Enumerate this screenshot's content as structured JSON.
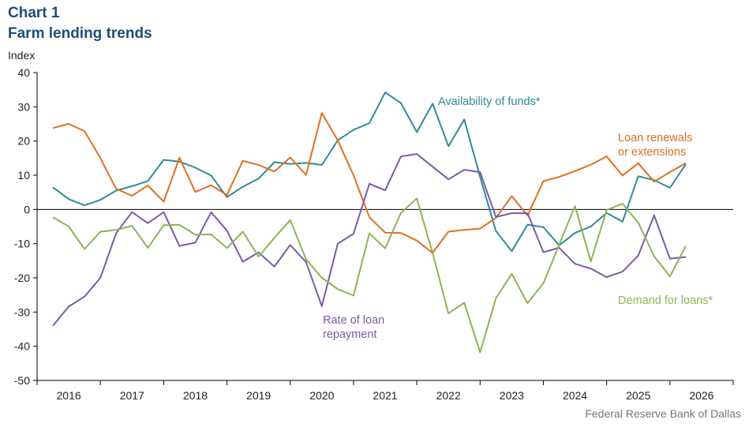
{
  "header": {
    "chart_label": "Chart 1",
    "title": "Farm lending trends"
  },
  "footer": {
    "source": "Federal Reserve Bank of Dallas"
  },
  "chart_data": {
    "type": "line",
    "ylabel": "Index",
    "ylim": [
      -50,
      40
    ],
    "yticks": [
      40,
      30,
      20,
      10,
      0,
      -10,
      -20,
      -30,
      -40,
      -50
    ],
    "xlim": [
      2015.5,
      2026.5
    ],
    "xtick_labels": [
      "2016",
      "2017",
      "2018",
      "2019",
      "2020",
      "2021",
      "2022",
      "2023",
      "2024",
      "2025",
      "2026"
    ],
    "grid": false,
    "x": [
      2015.75,
      2016.0,
      2016.25,
      2016.5,
      2016.75,
      2017.0,
      2017.25,
      2017.5,
      2017.75,
      2018.0,
      2018.25,
      2018.5,
      2018.75,
      2019.0,
      2019.25,
      2019.5,
      2019.75,
      2020.0,
      2020.25,
      2020.5,
      2020.75,
      2021.0,
      2021.25,
      2021.5,
      2021.75,
      2022.0,
      2022.25,
      2022.5,
      2022.75,
      2023.0,
      2023.25,
      2023.5,
      2023.75,
      2024.0,
      2024.25,
      2024.5,
      2024.75,
      2025.0,
      2025.25,
      2025.5,
      2025.75
    ],
    "series": [
      {
        "name": "Availability of funds*",
        "color": "#2e8b9a",
        "label_lines": [
          "Availability of funds*"
        ],
        "values": [
          6.5,
          3.0,
          1.2,
          2.8,
          5.5,
          6.8,
          8.3,
          14.5,
          14.0,
          12.2,
          9.9,
          3.6,
          6.6,
          9.0,
          13.8,
          13.3,
          13.6,
          13.0,
          20.2,
          23.3,
          25.2,
          34.2,
          31.1,
          22.6,
          30.9,
          18.5,
          26.3,
          9.5,
          -6.3,
          -12.2,
          -4.5,
          -5.2,
          -10.5,
          -6.9,
          -5.0,
          -1.0,
          -3.6,
          9.7,
          8.6,
          6.3,
          13.2
        ]
      },
      {
        "name": "Loan renewals or extensions",
        "color": "#e07020",
        "label_lines": [
          "Loan renewals",
          "or extensions"
        ],
        "values": [
          23.8,
          25.0,
          22.9,
          15.0,
          6.0,
          4.0,
          7.0,
          2.3,
          15.1,
          5.1,
          7.1,
          4.2,
          14.2,
          13.0,
          11.1,
          15.2,
          10.1,
          28.2,
          20.2,
          10.0,
          -2.3,
          -6.8,
          -6.9,
          -9.1,
          -12.7,
          -6.5,
          -6.0,
          -5.6,
          -2.5,
          3.9,
          -1.8,
          8.3,
          9.5,
          11.2,
          13.1,
          15.5,
          9.9,
          13.5,
          8.1,
          10.9,
          13.5
        ]
      },
      {
        "name": "Rate of loan repayment",
        "color": "#7b5aa6",
        "label_lines": [
          "Rate of loan",
          "repayment"
        ],
        "values": [
          -34.0,
          -28.4,
          -25.5,
          -20.0,
          -6.9,
          -0.8,
          -4.0,
          -0.8,
          -10.7,
          -9.7,
          -0.8,
          -6.2,
          -15.3,
          -12.6,
          -16.7,
          -10.4,
          -15.4,
          -28.3,
          -10.0,
          -7.1,
          7.5,
          5.6,
          15.5,
          16.2,
          12.5,
          8.8,
          11.6,
          10.9,
          -2.2,
          -1.1,
          -1.1,
          -12.5,
          -11.2,
          -15.9,
          -17.3,
          -19.8,
          -18.2,
          -13.5,
          -1.7,
          -14.4,
          -13.9
        ]
      },
      {
        "name": "Demand for loans*",
        "color": "#8db356",
        "label_lines": [
          "Demand for loans*"
        ],
        "values": [
          -2.3,
          -5.0,
          -11.6,
          -6.5,
          -6.0,
          -4.8,
          -11.2,
          -4.6,
          -4.5,
          -7.4,
          -7.3,
          -11.3,
          -6.5,
          -13.8,
          -8.3,
          -3.1,
          -14.6,
          -20.0,
          -23.3,
          -25.2,
          -7.0,
          -11.4,
          -1.0,
          3.2,
          -12.7,
          -30.4,
          -27.3,
          -41.8,
          -26.0,
          -18.8,
          -27.4,
          -21.6,
          -10.3,
          1.0,
          -15.2,
          -0.2,
          1.7,
          -3.9,
          -13.7,
          -19.6,
          -10.7
        ]
      }
    ]
  }
}
